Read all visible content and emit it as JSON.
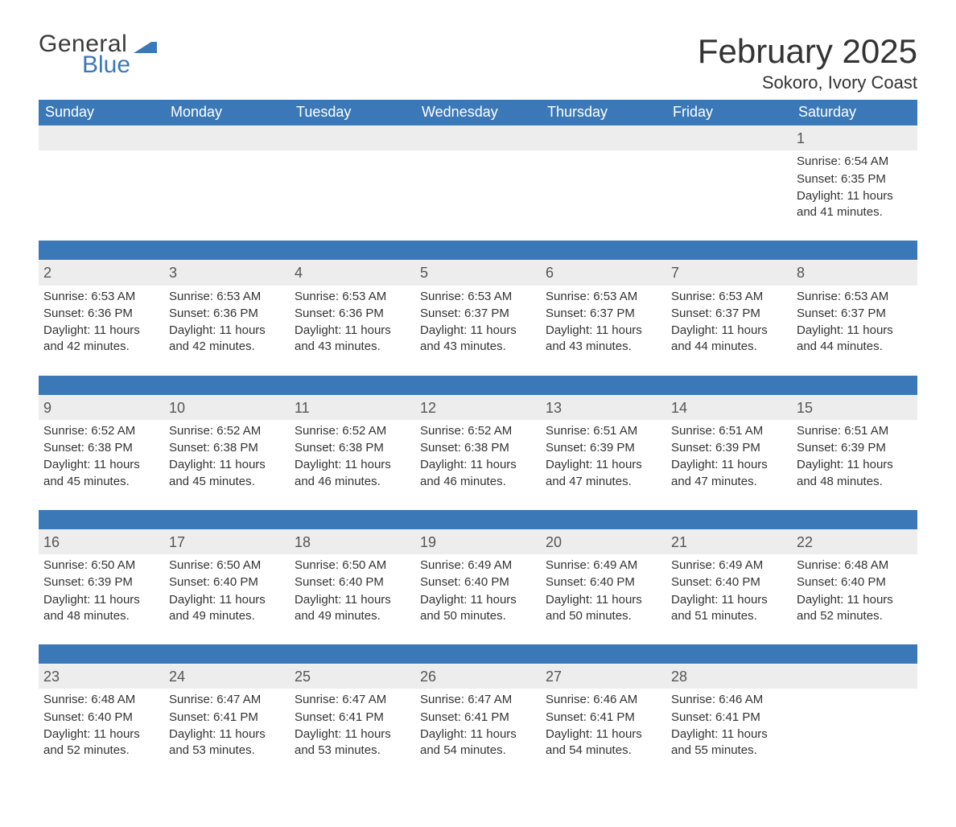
{
  "brand": {
    "word1": "General",
    "word2": "Blue",
    "word1_color": "#3b3b3b",
    "word2_color": "#3b78b8",
    "mark_color": "#3b78b8"
  },
  "title": {
    "month_year": "February 2025",
    "location": "Sokoro, Ivory Coast",
    "month_fontsize": 42,
    "location_fontsize": 22,
    "text_color": "#333333"
  },
  "style": {
    "header_bg": "#3b78b8",
    "header_text": "#ffffff",
    "daynum_bg": "#ededed",
    "daynum_color": "#555555",
    "body_text": "#333333",
    "separator_color": "#3b78b8",
    "page_bg": "#ffffff",
    "header_fontsize": 18,
    "daynum_fontsize": 18,
    "body_fontsize": 15
  },
  "weekdays": [
    "Sunday",
    "Monday",
    "Tuesday",
    "Wednesday",
    "Thursday",
    "Friday",
    "Saturday"
  ],
  "labels": {
    "sunrise": "Sunrise:",
    "sunset": "Sunset:",
    "daylight": "Daylight:"
  },
  "weeks": [
    [
      {
        "empty": true
      },
      {
        "empty": true
      },
      {
        "empty": true
      },
      {
        "empty": true
      },
      {
        "empty": true
      },
      {
        "empty": true
      },
      {
        "day": "1",
        "sunrise": "6:54 AM",
        "sunset": "6:35 PM",
        "daylight": "11 hours and 41 minutes."
      }
    ],
    [
      {
        "day": "2",
        "sunrise": "6:53 AM",
        "sunset": "6:36 PM",
        "daylight": "11 hours and 42 minutes."
      },
      {
        "day": "3",
        "sunrise": "6:53 AM",
        "sunset": "6:36 PM",
        "daylight": "11 hours and 42 minutes."
      },
      {
        "day": "4",
        "sunrise": "6:53 AM",
        "sunset": "6:36 PM",
        "daylight": "11 hours and 43 minutes."
      },
      {
        "day": "5",
        "sunrise": "6:53 AM",
        "sunset": "6:37 PM",
        "daylight": "11 hours and 43 minutes."
      },
      {
        "day": "6",
        "sunrise": "6:53 AM",
        "sunset": "6:37 PM",
        "daylight": "11 hours and 43 minutes."
      },
      {
        "day": "7",
        "sunrise": "6:53 AM",
        "sunset": "6:37 PM",
        "daylight": "11 hours and 44 minutes."
      },
      {
        "day": "8",
        "sunrise": "6:53 AM",
        "sunset": "6:37 PM",
        "daylight": "11 hours and 44 minutes."
      }
    ],
    [
      {
        "day": "9",
        "sunrise": "6:52 AM",
        "sunset": "6:38 PM",
        "daylight": "11 hours and 45 minutes."
      },
      {
        "day": "10",
        "sunrise": "6:52 AM",
        "sunset": "6:38 PM",
        "daylight": "11 hours and 45 minutes."
      },
      {
        "day": "11",
        "sunrise": "6:52 AM",
        "sunset": "6:38 PM",
        "daylight": "11 hours and 46 minutes."
      },
      {
        "day": "12",
        "sunrise": "6:52 AM",
        "sunset": "6:38 PM",
        "daylight": "11 hours and 46 minutes."
      },
      {
        "day": "13",
        "sunrise": "6:51 AM",
        "sunset": "6:39 PM",
        "daylight": "11 hours and 47 minutes."
      },
      {
        "day": "14",
        "sunrise": "6:51 AM",
        "sunset": "6:39 PM",
        "daylight": "11 hours and 47 minutes."
      },
      {
        "day": "15",
        "sunrise": "6:51 AM",
        "sunset": "6:39 PM",
        "daylight": "11 hours and 48 minutes."
      }
    ],
    [
      {
        "day": "16",
        "sunrise": "6:50 AM",
        "sunset": "6:39 PM",
        "daylight": "11 hours and 48 minutes."
      },
      {
        "day": "17",
        "sunrise": "6:50 AM",
        "sunset": "6:40 PM",
        "daylight": "11 hours and 49 minutes."
      },
      {
        "day": "18",
        "sunrise": "6:50 AM",
        "sunset": "6:40 PM",
        "daylight": "11 hours and 49 minutes."
      },
      {
        "day": "19",
        "sunrise": "6:49 AM",
        "sunset": "6:40 PM",
        "daylight": "11 hours and 50 minutes."
      },
      {
        "day": "20",
        "sunrise": "6:49 AM",
        "sunset": "6:40 PM",
        "daylight": "11 hours and 50 minutes."
      },
      {
        "day": "21",
        "sunrise": "6:49 AM",
        "sunset": "6:40 PM",
        "daylight": "11 hours and 51 minutes."
      },
      {
        "day": "22",
        "sunrise": "6:48 AM",
        "sunset": "6:40 PM",
        "daylight": "11 hours and 52 minutes."
      }
    ],
    [
      {
        "day": "23",
        "sunrise": "6:48 AM",
        "sunset": "6:40 PM",
        "daylight": "11 hours and 52 minutes."
      },
      {
        "day": "24",
        "sunrise": "6:47 AM",
        "sunset": "6:41 PM",
        "daylight": "11 hours and 53 minutes."
      },
      {
        "day": "25",
        "sunrise": "6:47 AM",
        "sunset": "6:41 PM",
        "daylight": "11 hours and 53 minutes."
      },
      {
        "day": "26",
        "sunrise": "6:47 AM",
        "sunset": "6:41 PM",
        "daylight": "11 hours and 54 minutes."
      },
      {
        "day": "27",
        "sunrise": "6:46 AM",
        "sunset": "6:41 PM",
        "daylight": "11 hours and 54 minutes."
      },
      {
        "day": "28",
        "sunrise": "6:46 AM",
        "sunset": "6:41 PM",
        "daylight": "11 hours and 55 minutes."
      },
      {
        "empty": true
      }
    ]
  ]
}
